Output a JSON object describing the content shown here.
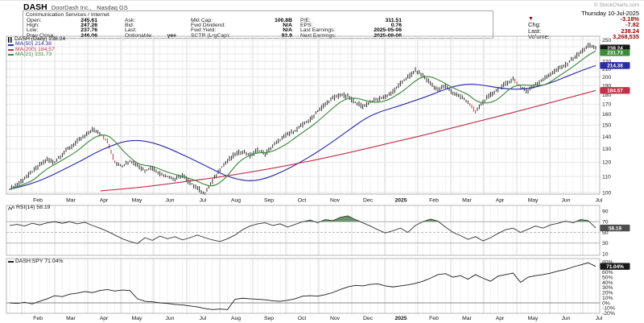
{
  "header": {
    "symbol": "DASH",
    "company": "DoorDash Inc.,",
    "exchange": "Nasdaq GS",
    "copyright": "© StockCharts.com",
    "sector_industry": "Communication Services / Internet",
    "quote_grid": {
      "col1": [
        {
          "label": "Open:",
          "value": "245.61"
        },
        {
          "label": "High:",
          "value": "247.26"
        },
        {
          "label": "Low:",
          "value": "237.76"
        },
        {
          "label": "Prev Close:",
          "value": "246.06"
        }
      ],
      "col2": [
        {
          "label": "Ask:",
          "value": ""
        },
        {
          "label": "Bid:",
          "value": ""
        },
        {
          "label": "Last:",
          "value": ""
        },
        {
          "label": "Optionable:",
          "value": "yes"
        }
      ],
      "col3": [
        {
          "label": "Mkt Cap:",
          "value": "100.8B"
        },
        {
          "label": "Fwd Dividend:",
          "value": "N/A"
        },
        {
          "label": "Fwd Yield:",
          "value": "N/A"
        },
        {
          "label": "SCTR (LrgCap):",
          "value": "92.9"
        }
      ],
      "col4": [
        {
          "label": "P/E:",
          "value": "311.51"
        },
        {
          "label": "EPS:",
          "value": "0.76"
        },
        {
          "label": "Last Earnings:",
          "value": "2025-05-06"
        },
        {
          "label": "Next Earnings:",
          "value": "2025-08-06"
        }
      ]
    },
    "quote_panel": {
      "date": "Thursday 10-Jul-2025",
      "direction": "▼",
      "pct_change": "-3.18%",
      "rows": [
        {
          "label": "Chg:",
          "value": "-7.82"
        },
        {
          "label": "Last:",
          "value": "238.24"
        },
        {
          "label": "Volume:",
          "value": "3,268,535"
        }
      ]
    }
  },
  "colors": {
    "negative_text": "#990000",
    "ma50": "#2b2ba6",
    "ma200": "#c33049",
    "ma21": "#3d8a3d",
    "price_bars": "#111111",
    "down_bars": "#a23333",
    "rsi_line": "#333333",
    "rsi_fill": "#5c8a5c",
    "ratio_line": "#1a1a1a"
  },
  "chart_data": [
    {
      "type": "candlestick",
      "title": "DASH (Daily)",
      "yscale": "log",
      "ylim": [
        100,
        250
      ],
      "y_ticks": [
        100,
        110,
        120,
        130,
        140,
        150,
        160,
        170,
        180,
        190,
        200,
        210,
        220,
        230,
        240,
        250
      ],
      "x_months": [
        "Feb",
        "Mar",
        "Apr",
        "May",
        "Jun",
        "Jul",
        "Aug",
        "Sep",
        "Oct",
        "Nov",
        "Dec",
        "2025",
        "Feb",
        "Mar",
        "Apr",
        "May",
        "Jun",
        "Jul"
      ],
      "legend": [
        {
          "label": "DASH (Daily)",
          "value": "238.24"
        },
        {
          "label": "MA(50)",
          "value": "214.38"
        },
        {
          "label": "MA(200)",
          "value": "184.57"
        },
        {
          "label": "MA(21)",
          "value": "231.73"
        }
      ],
      "series": [
        {
          "name": "close",
          "type": "bars",
          "color": "#111111",
          "values": [
            102,
            105,
            109,
            113,
            118,
            122,
            120,
            126,
            131,
            136,
            140,
            146,
            143,
            136,
            120,
            117,
            121,
            118,
            114,
            116,
            112,
            110,
            108,
            111,
            106,
            103,
            99,
            107,
            115,
            121,
            126,
            128,
            125,
            129,
            126,
            132,
            137,
            142,
            145,
            150,
            155,
            163,
            170,
            176,
            180,
            178,
            172,
            168,
            172,
            175,
            178,
            183,
            192,
            200,
            208,
            202,
            193,
            185,
            190,
            182,
            178,
            172,
            162,
            172,
            180,
            186,
            192,
            198,
            188,
            184,
            192,
            197,
            204,
            210,
            215,
            224,
            232,
            242,
            238.24
          ]
        },
        {
          "name": "MA(50)",
          "type": "line",
          "color": "#2b2ba6",
          "t_start": 0,
          "values": [
            102,
            104,
            107,
            111,
            116,
            121,
            127,
            132,
            136,
            137,
            135,
            131,
            126,
            121,
            116,
            111,
            108,
            107,
            109,
            113,
            118,
            124,
            131,
            139,
            148,
            157,
            163,
            167,
            172,
            177,
            183,
            189,
            192,
            191,
            188,
            186,
            186,
            189,
            194,
            201,
            208,
            214.38
          ]
        },
        {
          "name": "MA(200)",
          "type": "line",
          "color": "#c33049",
          "t_start": 0.155,
          "values": [
            101,
            102.5,
            104.5,
            107,
            109.5,
            112.5,
            116,
            120,
            124.5,
            129.5,
            135,
            140.5,
            147,
            153.5,
            160.5,
            168,
            176,
            184.57
          ]
        },
        {
          "name": "MA(21)",
          "type": "line",
          "color": "#3d8a3d",
          "derived_window": 4
        }
      ],
      "badges": [
        {
          "v": 238.24,
          "text": "238.24",
          "bg": "#1a1a1a"
        },
        {
          "v": 231.73,
          "text": "231.73",
          "bg": "#3d8a3d"
        },
        {
          "v": 214.38,
          "text": "214.38",
          "bg": "#2b2ba6"
        },
        {
          "v": 184.57,
          "text": "184.57",
          "bg": "#c33049"
        }
      ]
    },
    {
      "type": "line",
      "title": "RSI(14)",
      "legend_value": "58.19",
      "ylim": [
        10,
        90
      ],
      "y_ticks": [
        90,
        70,
        50,
        30,
        10
      ],
      "overbought": 70,
      "oversold": 30,
      "midline": 50,
      "fill_above": 70,
      "values": [
        63,
        65,
        62,
        67,
        64,
        68,
        70,
        67,
        70,
        66,
        69,
        63,
        58,
        52,
        45,
        38,
        33,
        29,
        40,
        35,
        43,
        38,
        42,
        36,
        40,
        45,
        40,
        36,
        33,
        38,
        45,
        55,
        62,
        66,
        68,
        63,
        66,
        60,
        65,
        70,
        73,
        68,
        74,
        72,
        78,
        81,
        74,
        68,
        62,
        55,
        49,
        53,
        58,
        50,
        63,
        70,
        75,
        71,
        60,
        50,
        44,
        37,
        42,
        34,
        40,
        48,
        55,
        58,
        50,
        56,
        62,
        58,
        64,
        67,
        71,
        68,
        74,
        72,
        58.19
      ],
      "badges": [
        {
          "v": 58.19,
          "text": "58.19",
          "bg": "#4d4d4d"
        }
      ]
    },
    {
      "type": "line",
      "title": "DASH:SPY",
      "legend_value": "71.04%",
      "ylim": [
        -20,
        80
      ],
      "y_ticks": [
        80,
        70,
        60,
        50,
        40,
        30,
        20,
        10,
        0,
        -10,
        -20
      ],
      "tick_suffix": "%",
      "zero_line": 0,
      "values": [
        0,
        -1,
        1,
        -2,
        3,
        8,
        14,
        12,
        17,
        19,
        22,
        20,
        24,
        26,
        23,
        25,
        24,
        8,
        3,
        2,
        0,
        -1,
        -3,
        -4,
        -6,
        -8,
        -11,
        -13,
        -12,
        -13,
        7,
        9,
        8,
        7,
        6,
        4,
        3,
        5,
        8,
        13,
        14,
        13,
        16,
        20,
        26,
        31,
        34,
        33,
        36,
        37,
        33,
        31,
        33,
        35,
        38,
        42,
        48,
        55,
        57,
        50,
        53,
        46,
        55,
        48,
        42,
        52,
        55,
        58,
        40,
        50,
        53,
        55,
        58,
        62,
        65,
        70,
        74,
        78,
        71.04
      ],
      "badges": [
        {
          "v": 71.04,
          "text": "71.04%",
          "bg": "#1a1a1a"
        }
      ]
    }
  ]
}
